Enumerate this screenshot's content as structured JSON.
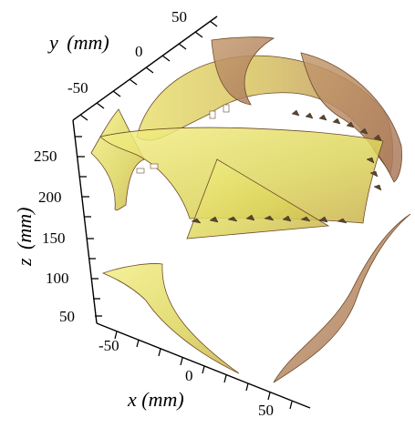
{
  "axes": {
    "y": {
      "label": "y",
      "unit": "(mm)",
      "ticks": [
        "50",
        "0",
        "-50"
      ]
    },
    "z": {
      "label": "z",
      "unit": "(mm)",
      "ticks": [
        "250",
        "200",
        "150",
        "100",
        "50"
      ]
    },
    "x": {
      "label": "x",
      "unit": "(mm)",
      "ticks": [
        "-50",
        "0",
        "50"
      ]
    }
  },
  "colors": {
    "surface_yellow": "#e6e36a",
    "surface_brown": "#b98a6a",
    "edge": "#6d4a2a",
    "axis": "#000000"
  }
}
